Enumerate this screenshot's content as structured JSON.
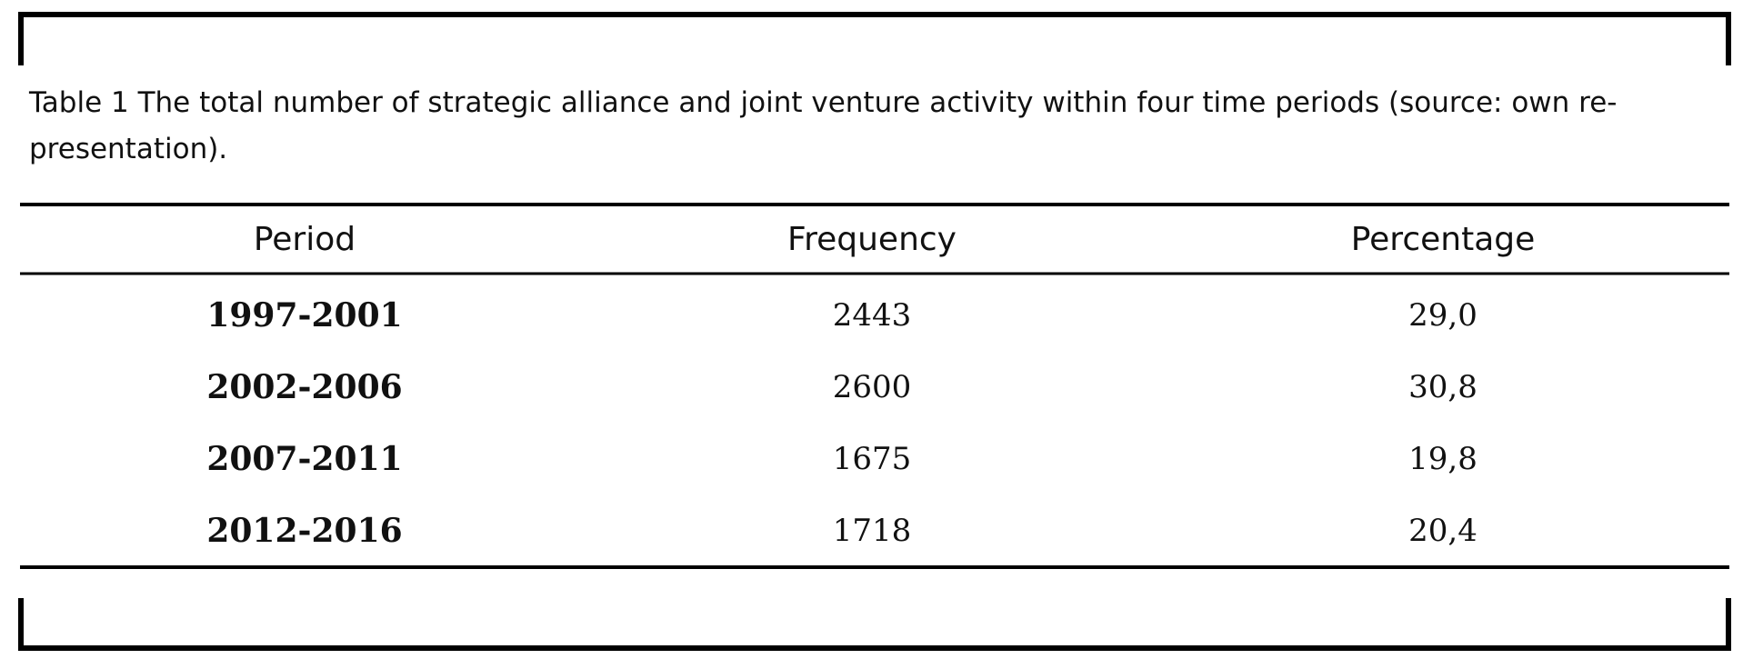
{
  "caption": {
    "lines": [
      "Table 1 The total number of strategic alliance and joint venture activity within four time periods (source: own re-",
      "presentation)."
    ]
  },
  "table": {
    "header": [
      "Period",
      "Frequency",
      "Percentage"
    ],
    "rows": [
      [
        "1997-2001",
        2443,
        "29,0"
      ],
      [
        "2002-2006",
        2600,
        "30,8"
      ],
      [
        "2007-2011",
        1675,
        "19,8"
      ],
      [
        "2012-2016",
        1718,
        "20,4"
      ]
    ]
  }
}
